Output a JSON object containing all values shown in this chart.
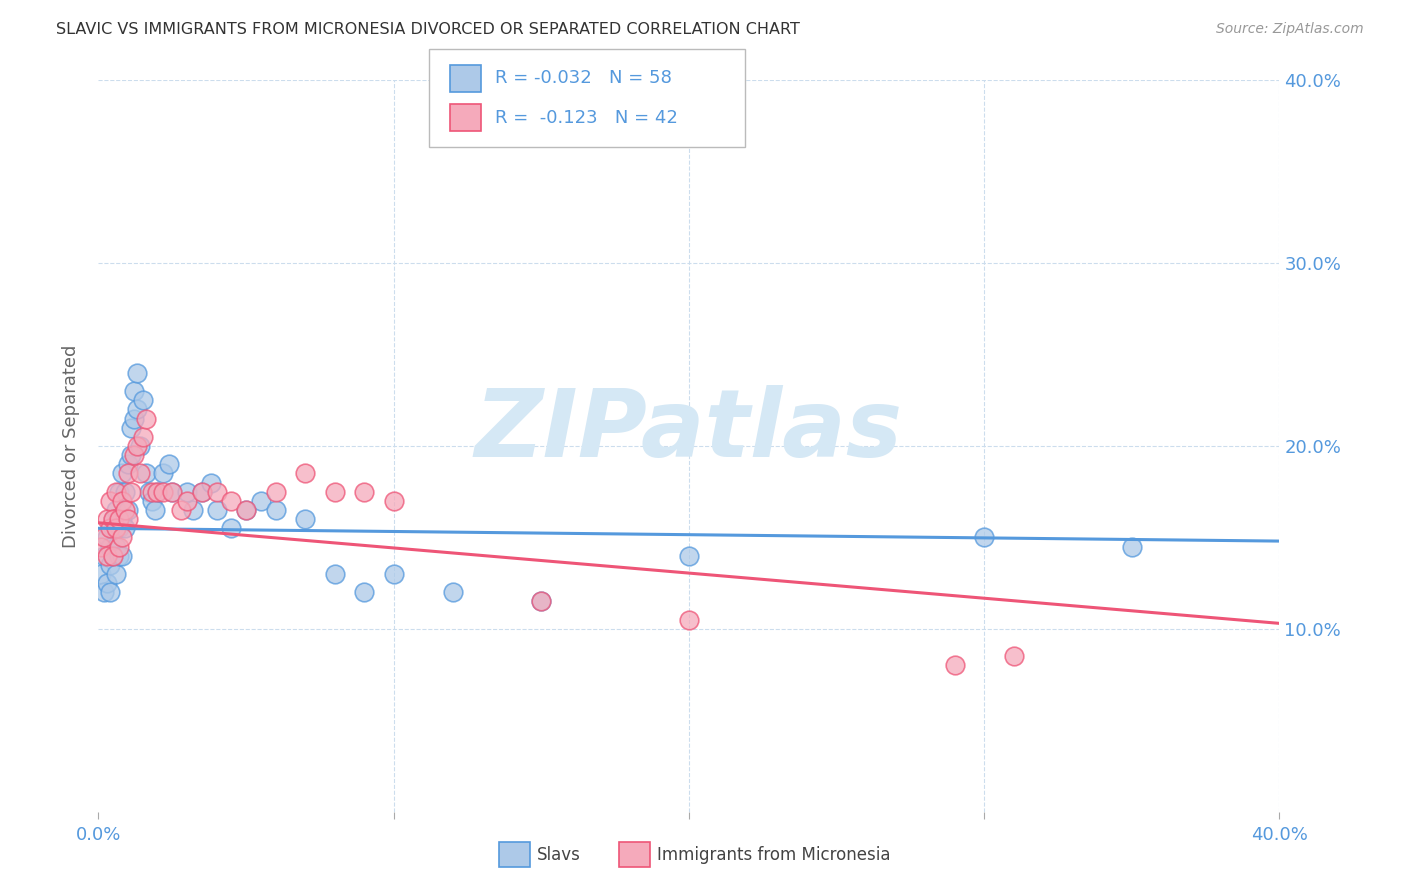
{
  "title": "SLAVIC VS IMMIGRANTS FROM MICRONESIA DIVORCED OR SEPARATED CORRELATION CHART",
  "source": "Source: ZipAtlas.com",
  "ylabel": "Divorced or Separated",
  "legend_label1": "Slavs",
  "legend_label2": "Immigrants from Micronesia",
  "r1": "-0.032",
  "n1": "58",
  "r2": "-0.123",
  "n2": "42",
  "xlim": [
    0.0,
    0.4
  ],
  "ylim": [
    0.0,
    0.4
  ],
  "xticks": [
    0.0,
    0.1,
    0.2,
    0.3,
    0.4
  ],
  "yticks": [
    0.1,
    0.2,
    0.3,
    0.4
  ],
  "xticklabels": [
    "0.0%",
    "",
    "",
    "",
    "40.0%"
  ],
  "yticklabels": [
    "10.0%",
    "20.0%",
    "30.0%",
    "40.0%"
  ],
  "color_blue": "#adc9e8",
  "color_pink": "#f5aabb",
  "color_blue_dark": "#5599dd",
  "color_pink_dark": "#ee5577",
  "color_axis": "#5599dd",
  "color_grid": "#ccdded",
  "background_color": "#ffffff",
  "slavs_x": [
    0.001,
    0.002,
    0.002,
    0.003,
    0.003,
    0.004,
    0.004,
    0.004,
    0.005,
    0.005,
    0.005,
    0.006,
    0.006,
    0.006,
    0.007,
    0.007,
    0.007,
    0.008,
    0.008,
    0.008,
    0.009,
    0.009,
    0.01,
    0.01,
    0.011,
    0.011,
    0.012,
    0.012,
    0.013,
    0.013,
    0.014,
    0.015,
    0.016,
    0.017,
    0.018,
    0.019,
    0.02,
    0.022,
    0.024,
    0.025,
    0.03,
    0.032,
    0.035,
    0.038,
    0.04,
    0.045,
    0.05,
    0.055,
    0.06,
    0.07,
    0.08,
    0.09,
    0.1,
    0.12,
    0.15,
    0.2,
    0.3,
    0.35
  ],
  "slavs_y": [
    0.13,
    0.14,
    0.12,
    0.15,
    0.125,
    0.145,
    0.135,
    0.12,
    0.155,
    0.14,
    0.16,
    0.165,
    0.145,
    0.13,
    0.175,
    0.155,
    0.14,
    0.185,
    0.16,
    0.14,
    0.175,
    0.155,
    0.19,
    0.165,
    0.21,
    0.195,
    0.23,
    0.215,
    0.24,
    0.22,
    0.2,
    0.225,
    0.185,
    0.175,
    0.17,
    0.165,
    0.175,
    0.185,
    0.19,
    0.175,
    0.175,
    0.165,
    0.175,
    0.18,
    0.165,
    0.155,
    0.165,
    0.17,
    0.165,
    0.16,
    0.13,
    0.12,
    0.13,
    0.12,
    0.115,
    0.14,
    0.15,
    0.145
  ],
  "micro_x": [
    0.001,
    0.002,
    0.003,
    0.003,
    0.004,
    0.004,
    0.005,
    0.005,
    0.006,
    0.006,
    0.007,
    0.007,
    0.008,
    0.008,
    0.009,
    0.01,
    0.01,
    0.011,
    0.012,
    0.013,
    0.014,
    0.015,
    0.016,
    0.018,
    0.02,
    0.022,
    0.025,
    0.028,
    0.03,
    0.035,
    0.04,
    0.045,
    0.05,
    0.06,
    0.07,
    0.08,
    0.09,
    0.1,
    0.15,
    0.2,
    0.29,
    0.31
  ],
  "micro_y": [
    0.145,
    0.15,
    0.14,
    0.16,
    0.155,
    0.17,
    0.16,
    0.14,
    0.175,
    0.155,
    0.16,
    0.145,
    0.17,
    0.15,
    0.165,
    0.185,
    0.16,
    0.175,
    0.195,
    0.2,
    0.185,
    0.205,
    0.215,
    0.175,
    0.175,
    0.175,
    0.175,
    0.165,
    0.17,
    0.175,
    0.175,
    0.17,
    0.165,
    0.175,
    0.185,
    0.175,
    0.175,
    0.17,
    0.115,
    0.105,
    0.08,
    0.085
  ],
  "watermark": "ZIPatlas",
  "watermark_color": "#d5e8f5"
}
